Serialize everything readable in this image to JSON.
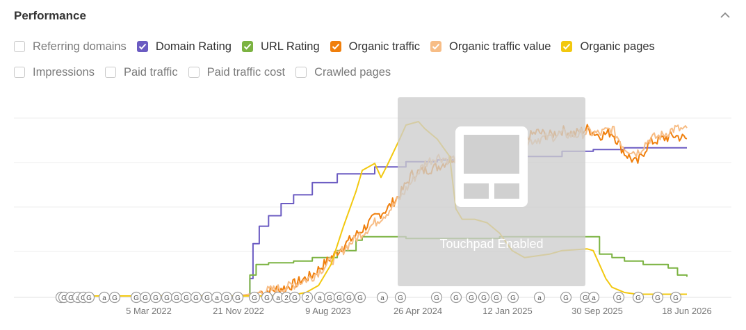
{
  "header": {
    "title": "Performance"
  },
  "metrics_row1": [
    {
      "label": "Referring domains",
      "checked": false,
      "color": ""
    },
    {
      "label": "Domain Rating",
      "checked": true,
      "color": "#6b5bc2"
    },
    {
      "label": "URL Rating",
      "checked": true,
      "color": "#7cb342"
    },
    {
      "label": "Organic traffic",
      "checked": true,
      "color": "#f07f0c"
    },
    {
      "label": "Organic traffic value",
      "checked": true,
      "color": "#f7bd86"
    },
    {
      "label": "Organic pages",
      "checked": true,
      "color": "#f2c80f"
    }
  ],
  "metrics_row2": [
    {
      "label": "Impressions",
      "checked": false
    },
    {
      "label": "Paid traffic",
      "checked": false
    },
    {
      "label": "Paid traffic cost",
      "checked": false
    },
    {
      "label": "Crawled pages",
      "checked": false
    }
  ],
  "overlay": {
    "text": "Touchpad Enabled"
  },
  "chart_data": {
    "type": "line",
    "x_ticks": [
      "5 Mar 2022",
      "21 Nov 2022",
      "9 Aug 2023",
      "26 Apr 2024",
      "12 Jan 2025",
      "30 Sep 2025",
      "18 Jun 2026"
    ],
    "grid": true,
    "y_scale_note": "no y-axis labels shown; values are relative heights 0-100",
    "series": [
      {
        "name": "Domain Rating",
        "color": "#6b5bc2",
        "points": [
          [
            0.0,
            0
          ],
          [
            0.296,
            0
          ],
          [
            0.3,
            10
          ],
          [
            0.305,
            30
          ],
          [
            0.315,
            40
          ],
          [
            0.33,
            46
          ],
          [
            0.35,
            53
          ],
          [
            0.37,
            58
          ],
          [
            0.4,
            65
          ],
          [
            0.44,
            70
          ],
          [
            0.5,
            74
          ],
          [
            0.55,
            77
          ],
          [
            0.6,
            78
          ],
          [
            0.65,
            79
          ],
          [
            0.7,
            80
          ],
          [
            0.8,
            83
          ],
          [
            0.85,
            84
          ],
          [
            0.9,
            85
          ],
          [
            1.0,
            85
          ]
        ]
      },
      {
        "name": "URL Rating",
        "color": "#7cb342",
        "points": [
          [
            0.0,
            0
          ],
          [
            0.296,
            0
          ],
          [
            0.3,
            12
          ],
          [
            0.31,
            18
          ],
          [
            0.33,
            19
          ],
          [
            0.37,
            20
          ],
          [
            0.4,
            22
          ],
          [
            0.44,
            26
          ],
          [
            0.47,
            32
          ],
          [
            0.48,
            34
          ],
          [
            0.55,
            33
          ],
          [
            0.6,
            33
          ],
          [
            0.7,
            34
          ],
          [
            0.8,
            34
          ],
          [
            0.84,
            34
          ],
          [
            0.86,
            24
          ],
          [
            0.88,
            22
          ],
          [
            0.9,
            20
          ],
          [
            0.93,
            18
          ],
          [
            0.97,
            16
          ],
          [
            0.985,
            12
          ],
          [
            1.0,
            11
          ]
        ]
      },
      {
        "name": "Organic traffic",
        "color": "#f07f0c",
        "points": [
          [
            0.0,
            0
          ],
          [
            0.28,
            0
          ],
          [
            0.3,
            1
          ],
          [
            0.33,
            3
          ],
          [
            0.36,
            5
          ],
          [
            0.4,
            12
          ],
          [
            0.43,
            22
          ],
          [
            0.46,
            32
          ],
          [
            0.48,
            38
          ],
          [
            0.5,
            45
          ],
          [
            0.52,
            50
          ],
          [
            0.54,
            58
          ],
          [
            0.56,
            70
          ],
          [
            0.58,
            72
          ],
          [
            0.6,
            74
          ],
          [
            0.62,
            78
          ],
          [
            0.64,
            82
          ],
          [
            0.66,
            86
          ],
          [
            0.68,
            87
          ],
          [
            0.7,
            85
          ],
          [
            0.72,
            88
          ],
          [
            0.74,
            90
          ],
          [
            0.76,
            94
          ],
          [
            0.78,
            92
          ],
          [
            0.8,
            95
          ],
          [
            0.82,
            93
          ],
          [
            0.84,
            96
          ],
          [
            0.86,
            92
          ],
          [
            0.88,
            94
          ],
          [
            0.9,
            82
          ],
          [
            0.92,
            76
          ],
          [
            0.94,
            88
          ],
          [
            0.96,
            90
          ],
          [
            0.98,
            92
          ],
          [
            1.0,
            90
          ]
        ]
      },
      {
        "name": "Organic traffic value",
        "color": "#f7bd86",
        "points": [
          [
            0.0,
            0
          ],
          [
            0.28,
            0
          ],
          [
            0.3,
            1
          ],
          [
            0.33,
            3
          ],
          [
            0.36,
            5
          ],
          [
            0.4,
            11
          ],
          [
            0.43,
            20
          ],
          [
            0.46,
            30
          ],
          [
            0.48,
            36
          ],
          [
            0.5,
            42
          ],
          [
            0.52,
            48
          ],
          [
            0.54,
            56
          ],
          [
            0.56,
            66
          ],
          [
            0.58,
            76
          ],
          [
            0.6,
            80
          ],
          [
            0.62,
            78
          ],
          [
            0.64,
            80
          ],
          [
            0.66,
            82
          ],
          [
            0.68,
            84
          ],
          [
            0.7,
            83
          ],
          [
            0.72,
            86
          ],
          [
            0.74,
            88
          ],
          [
            0.76,
            90
          ],
          [
            0.78,
            91
          ],
          [
            0.8,
            93
          ],
          [
            0.82,
            92
          ],
          [
            0.84,
            94
          ],
          [
            0.86,
            93
          ],
          [
            0.88,
            96
          ],
          [
            0.9,
            85
          ],
          [
            0.92,
            82
          ],
          [
            0.94,
            90
          ],
          [
            0.96,
            92
          ],
          [
            0.98,
            96
          ],
          [
            1.0,
            95
          ]
        ]
      },
      {
        "name": "Organic pages",
        "color": "#f2c80f",
        "points": [
          [
            0.0,
            0
          ],
          [
            0.36,
            0
          ],
          [
            0.39,
            2
          ],
          [
            0.41,
            6
          ],
          [
            0.43,
            18
          ],
          [
            0.45,
            40
          ],
          [
            0.47,
            60
          ],
          [
            0.48,
            72
          ],
          [
            0.5,
            76
          ],
          [
            0.51,
            68
          ],
          [
            0.52,
            75
          ],
          [
            0.54,
            90
          ],
          [
            0.55,
            98
          ],
          [
            0.57,
            100
          ],
          [
            0.58,
            96
          ],
          [
            0.59,
            93
          ],
          [
            0.6,
            90
          ],
          [
            0.62,
            80
          ],
          [
            0.63,
            50
          ],
          [
            0.64,
            44
          ],
          [
            0.66,
            44
          ],
          [
            0.68,
            42
          ],
          [
            0.7,
            36
          ],
          [
            0.72,
            26
          ],
          [
            0.74,
            22
          ],
          [
            0.76,
            23
          ],
          [
            0.78,
            24
          ],
          [
            0.8,
            26
          ],
          [
            0.84,
            27
          ],
          [
            0.85,
            26
          ],
          [
            0.86,
            18
          ],
          [
            0.87,
            10
          ],
          [
            0.88,
            5
          ],
          [
            0.9,
            2
          ],
          [
            0.92,
            1
          ],
          [
            0.95,
            1
          ],
          [
            1.0,
            1
          ]
        ]
      }
    ],
    "markers": [
      "G",
      "G",
      "G",
      "a",
      "G",
      "G",
      "a",
      "G",
      "G",
      "G",
      "G",
      "G",
      "G",
      "G",
      "G",
      "G",
      "a",
      "G",
      "G",
      "G",
      "G",
      "a",
      "2",
      "G",
      "2",
      "a",
      "G",
      "G",
      "G",
      "G",
      "a",
      "G",
      "G",
      "G",
      "G"
    ]
  }
}
